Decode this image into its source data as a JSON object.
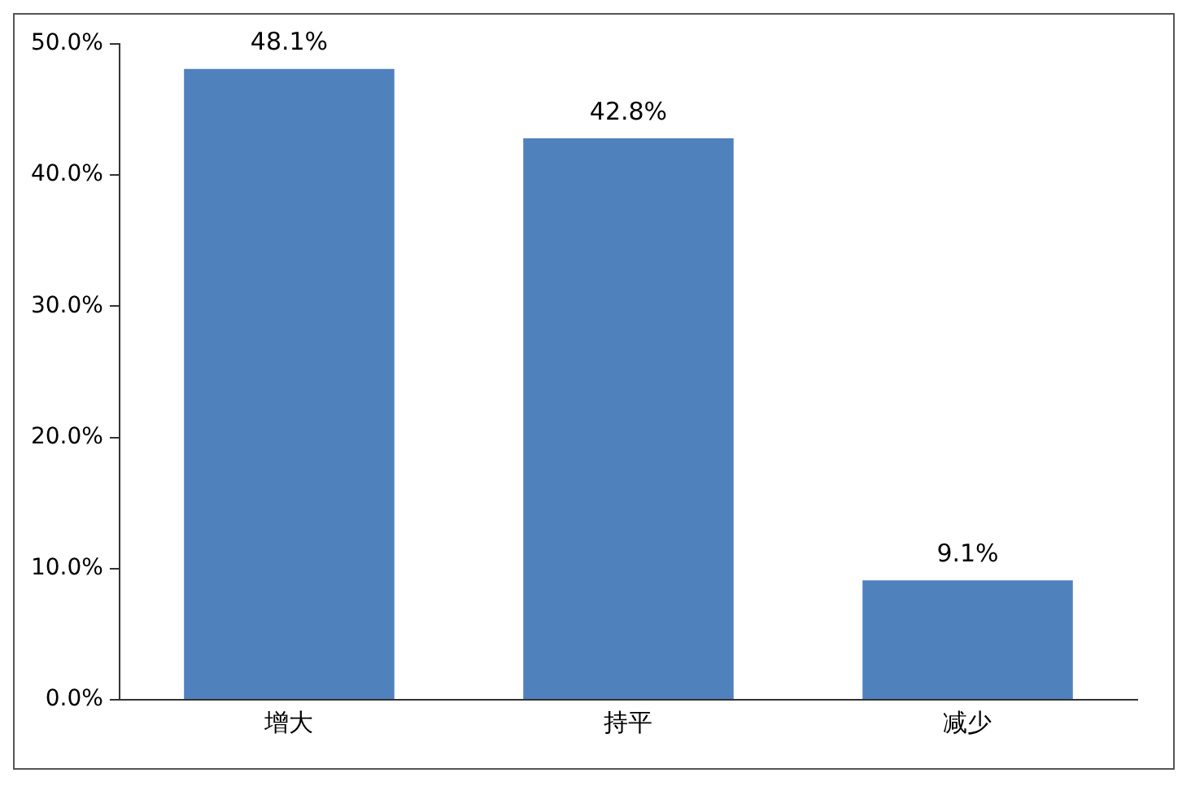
{
  "chart_data": {
    "type": "bar",
    "categories": [
      "增大",
      "持平",
      "减少"
    ],
    "values": [
      48.1,
      42.8,
      9.1
    ],
    "value_labels": [
      "48.1%",
      "42.8%",
      "9.1%"
    ],
    "color": "#4f81bd",
    "ylim": [
      0,
      50
    ],
    "yticks": [
      {
        "value": 0,
        "label": "0.0%"
      },
      {
        "value": 10,
        "label": "10.0%"
      },
      {
        "value": 20,
        "label": "20.0%"
      },
      {
        "value": 30,
        "label": "30.0%"
      },
      {
        "value": 40,
        "label": "40.0%"
      },
      {
        "value": 50,
        "label": "50.0%"
      }
    ],
    "grid": false,
    "legend": false
  }
}
